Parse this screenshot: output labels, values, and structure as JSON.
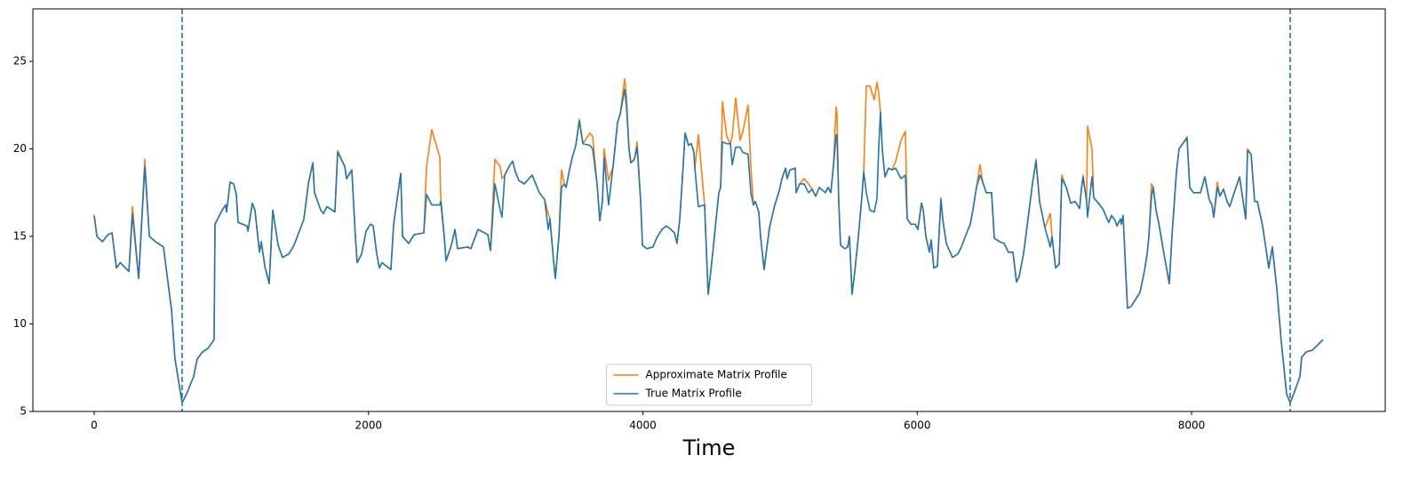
{
  "chart_data": {
    "type": "line",
    "xlabel": "Time",
    "x": [
      0,
      20,
      60,
      100,
      130,
      162,
      190,
      253,
      279,
      324,
      369,
      402,
      447,
      505,
      544,
      564,
      589,
      641,
      674,
      725,
      751,
      790,
      829,
      874,
      881,
      933,
      959,
      965,
      991,
      1017,
      1036,
      1049,
      1114,
      1121,
      1153,
      1172,
      1205,
      1218,
      1244,
      1276,
      1302,
      1341,
      1373,
      1419,
      1457,
      1496,
      1529,
      1561,
      1594,
      1606,
      1652,
      1671,
      1697,
      1755,
      1775,
      1827,
      1840,
      1878,
      1904,
      1917,
      1950,
      1982,
      2015,
      2034,
      2060,
      2079,
      2099,
      2163,
      2183,
      2235,
      2248,
      2293,
      2332,
      2403,
      2423,
      2461,
      2520,
      2526,
      2552,
      2565,
      2604,
      2630,
      2649,
      2721,
      2746,
      2798,
      2870,
      2889,
      2921,
      2960,
      2973,
      2993,
      3025,
      3051,
      3070,
      3096,
      3135,
      3193,
      3245,
      3284,
      3310,
      3323,
      3349,
      3362,
      3388,
      3407,
      3427,
      3440,
      3465,
      3485,
      3511,
      3537,
      3563,
      3614,
      3634,
      3666,
      3686,
      3705,
      3718,
      3750,
      3783,
      3815,
      3835,
      3867,
      3880,
      3899,
      3912,
      3938,
      3958,
      3984,
      3997,
      4029,
      4074,
      4100,
      4139,
      4171,
      4204,
      4230,
      4249,
      4269,
      4288,
      4308,
      4333,
      4353,
      4372,
      4379,
      4405,
      4450,
      4469,
      4476,
      4495,
      4515,
      4534,
      4554,
      4567,
      4580,
      4612,
      4638,
      4651,
      4677,
      4709,
      4729,
      4767,
      4787,
      4806,
      4819,
      4845,
      4858,
      4884,
      4903,
      4923,
      4962,
      4994,
      5014,
      5040,
      5052,
      5072,
      5111,
      5117,
      5143,
      5176,
      5208,
      5234,
      5260,
      5286,
      5331,
      5350,
      5370,
      5389,
      5409,
      5415,
      5428,
      5441,
      5473,
      5493,
      5506,
      5525,
      5545,
      5571,
      5597,
      5610,
      5629,
      5655,
      5687,
      5707,
      5719,
      5732,
      5745,
      5765,
      5791,
      5817,
      5843,
      5882,
      5914,
      5927,
      5953,
      5985,
      6005,
      6031,
      6044,
      6063,
      6089,
      6102,
      6121,
      6147,
      6173,
      6186,
      6212,
      6257,
      6296,
      6322,
      6361,
      6387,
      6406,
      6432,
      6458,
      6478,
      6503,
      6542,
      6562,
      6601,
      6633,
      6665,
      6698,
      6724,
      6743,
      6775,
      6808,
      6840,
      6866,
      6892,
      6931,
      6970,
      6983,
      7009,
      7035,
      7054,
      7087,
      7119,
      7151,
      7184,
      7197,
      7209,
      7235,
      7242,
      7274,
      7287,
      7332,
      7358,
      7384,
      7397,
      7417,
      7443,
      7456,
      7482,
      7488,
      7501,
      7520,
      7533,
      7559,
      7592,
      7624,
      7656,
      7676,
      7689,
      7708,
      7721,
      7741,
      7760,
      7799,
      7838,
      7857,
      7890,
      7909,
      7935,
      7967,
      7987,
      8013,
      8065,
      8097,
      8129,
      8149,
      8162,
      8188,
      8207,
      8233,
      8259,
      8278,
      8311,
      8350,
      8395,
      8408,
      8434,
      8460,
      8479,
      8518,
      8563,
      8589,
      8622,
      8654,
      8693,
      8719,
      8745,
      8790,
      8803,
      8835,
      8881,
      8920,
      8958
    ],
    "series": [
      {
        "name": "Approximate Matrix Profile",
        "color": "#ff7f0e",
        "values": [
          16.2,
          15.0,
          14.7,
          15.1,
          15.2,
          13.2,
          13.5,
          13.0,
          16.7,
          12.6,
          19.4,
          15.0,
          14.7,
          14.4,
          12.0,
          10.8,
          8.0,
          5.5,
          6.0,
          7.0,
          8.0,
          8.4,
          8.6,
          9.1,
          15.7,
          16.5,
          16.8,
          16.4,
          18.1,
          18.0,
          17.4,
          15.8,
          15.6,
          15.3,
          16.9,
          16.5,
          14.1,
          14.7,
          13.3,
          12.3,
          16.5,
          14.5,
          13.8,
          14.0,
          14.5,
          15.3,
          16.0,
          18.0,
          19.2,
          17.5,
          16.5,
          16.3,
          16.7,
          16.4,
          19.9,
          19.0,
          18.3,
          18.8,
          15.0,
          13.5,
          14.0,
          15.3,
          15.7,
          15.6,
          14.0,
          13.2,
          13.5,
          13.1,
          15.7,
          18.6,
          15.0,
          14.6,
          15.1,
          15.2,
          19.0,
          21.1,
          19.5,
          17.3,
          15.0,
          13.6,
          14.5,
          15.4,
          14.3,
          14.4,
          14.3,
          15.4,
          15.1,
          14.2,
          19.4,
          19.0,
          18.3,
          18.5,
          19.0,
          19.3,
          18.7,
          18.2,
          18.0,
          18.5,
          17.5,
          17.1,
          16.3,
          16.0,
          13.6,
          12.6,
          15.0,
          18.8,
          18.0,
          17.8,
          18.8,
          19.5,
          20.2,
          21.7,
          20.3,
          20.9,
          20.7,
          18.0,
          15.9,
          17.0,
          20.0,
          18.2,
          19.0,
          21.5,
          22.0,
          24.0,
          23.0,
          20.0,
          19.2,
          19.4,
          20.4,
          17.0,
          14.5,
          14.3,
          14.4,
          14.9,
          15.4,
          15.6,
          15.4,
          15.2,
          14.6,
          16.0,
          18.3,
          20.9,
          20.2,
          20.3,
          19.8,
          18.9,
          20.8,
          16.8,
          13.0,
          11.7,
          13.0,
          14.5,
          16.0,
          17.5,
          17.8,
          22.7,
          20.7,
          20.3,
          20.7,
          22.9,
          20.5,
          21.0,
          22.5,
          19.0,
          16.8,
          17.0,
          16.4,
          15.0,
          13.1,
          14.3,
          15.5,
          16.8,
          17.6,
          18.3,
          18.9,
          18.3,
          18.8,
          18.9,
          17.5,
          18.0,
          18.3,
          18.0,
          17.7,
          17.3,
          17.8,
          17.5,
          17.8,
          17.5,
          19.0,
          22.4,
          22.0,
          17.0,
          14.5,
          14.3,
          14.4,
          15.0,
          11.7,
          13.0,
          15.0,
          17.3,
          18.7,
          23.6,
          23.6,
          22.8,
          23.8,
          23.2,
          22.1,
          20.0,
          18.4,
          18.9,
          18.8,
          19.3,
          20.5,
          21.0,
          16.0,
          15.7,
          15.7,
          15.4,
          16.9,
          16.5,
          15.0,
          14.1,
          14.8,
          13.2,
          13.3,
          17.2,
          16.0,
          14.6,
          13.8,
          14.0,
          14.4,
          15.2,
          15.7,
          16.5,
          17.8,
          19.1,
          18.1,
          17.5,
          17.5,
          14.9,
          14.7,
          14.6,
          14.1,
          14.1,
          12.4,
          12.7,
          14.0,
          16.0,
          18.0,
          19.4,
          17.0,
          15.5,
          16.3,
          15.0,
          13.2,
          13.4,
          18.5,
          17.8,
          16.9,
          17.0,
          16.6,
          17.7,
          18.5,
          17.0,
          21.3,
          20.0,
          17.2,
          16.8,
          16.5,
          16.0,
          15.8,
          16.2,
          15.9,
          15.6,
          16.0,
          15.7,
          16.2,
          13.0,
          10.9,
          11.0,
          11.4,
          11.8,
          13.0,
          14.0,
          15.0,
          18.0,
          17.8,
          16.5,
          15.8,
          14.0,
          12.3,
          15.0,
          18.7,
          20.0,
          20.3,
          20.7,
          17.8,
          17.5,
          17.5,
          18.4,
          17.1,
          16.8,
          16.1,
          18.1,
          17.3,
          17.7,
          17.0,
          16.7,
          17.5,
          18.4,
          16.0,
          20.0,
          19.7,
          17.0,
          17.0,
          15.6,
          13.2,
          14.4,
          12.0,
          9.0,
          6.0,
          5.5,
          6.0,
          7.0,
          8.1,
          8.4,
          8.5,
          8.8,
          9.1
        ]
      },
      {
        "name": "True Matrix Profile",
        "color": "#1f77b4",
        "values": [
          16.2,
          15.0,
          14.7,
          15.1,
          15.2,
          13.2,
          13.5,
          13.0,
          16.3,
          12.6,
          19.0,
          15.0,
          14.7,
          14.4,
          12.0,
          10.8,
          8.0,
          5.5,
          6.0,
          7.0,
          8.0,
          8.4,
          8.6,
          9.1,
          15.7,
          16.5,
          16.8,
          16.4,
          18.1,
          18.0,
          17.4,
          15.8,
          15.6,
          15.3,
          16.9,
          16.5,
          14.1,
          14.7,
          13.3,
          12.3,
          16.5,
          14.5,
          13.8,
          14.0,
          14.5,
          15.3,
          16.0,
          18.0,
          19.2,
          17.5,
          16.5,
          16.3,
          16.7,
          16.4,
          19.8,
          19.0,
          18.3,
          18.8,
          15.0,
          13.5,
          14.0,
          15.3,
          15.7,
          15.6,
          14.0,
          13.2,
          13.5,
          13.1,
          15.7,
          18.6,
          15.0,
          14.6,
          15.1,
          15.2,
          17.4,
          16.8,
          16.8,
          17.0,
          15.0,
          13.6,
          14.5,
          15.4,
          14.3,
          14.4,
          14.3,
          15.4,
          15.1,
          14.2,
          18.0,
          16.5,
          16.1,
          18.5,
          19.0,
          19.3,
          18.7,
          18.2,
          18.0,
          18.5,
          17.5,
          17.1,
          15.4,
          16.0,
          13.6,
          12.6,
          15.0,
          17.8,
          18.0,
          17.8,
          18.8,
          19.5,
          20.2,
          21.6,
          20.3,
          20.2,
          20.0,
          18.0,
          15.9,
          17.0,
          19.5,
          16.8,
          19.0,
          21.5,
          22.0,
          23.4,
          22.5,
          20.0,
          19.2,
          19.4,
          20.1,
          17.0,
          14.5,
          14.3,
          14.4,
          14.9,
          15.4,
          15.6,
          15.4,
          15.2,
          14.6,
          16.0,
          18.3,
          20.9,
          20.2,
          20.3,
          19.8,
          18.9,
          16.7,
          16.8,
          13.0,
          11.7,
          13.0,
          14.5,
          16.0,
          17.5,
          17.8,
          20.4,
          20.3,
          20.3,
          19.1,
          20.1,
          20.1,
          19.8,
          19.7,
          17.5,
          16.8,
          17.0,
          16.4,
          15.0,
          13.1,
          14.3,
          15.5,
          16.8,
          17.6,
          18.3,
          18.9,
          18.3,
          18.8,
          18.9,
          17.5,
          18.0,
          18.0,
          17.5,
          17.7,
          17.3,
          17.8,
          17.5,
          17.8,
          17.5,
          19.0,
          20.8,
          20.8,
          17.0,
          14.5,
          14.3,
          14.4,
          15.0,
          11.7,
          13.0,
          15.0,
          17.3,
          18.7,
          17.5,
          16.5,
          16.4,
          17.2,
          20.0,
          22.1,
          20.0,
          18.4,
          18.9,
          18.8,
          18.9,
          18.3,
          18.5,
          16.0,
          15.7,
          15.7,
          15.4,
          16.9,
          16.5,
          15.0,
          14.1,
          14.8,
          13.2,
          13.3,
          17.1,
          16.0,
          14.6,
          13.8,
          14.0,
          14.4,
          15.2,
          15.7,
          16.5,
          17.8,
          18.5,
          18.1,
          17.5,
          17.5,
          14.9,
          14.7,
          14.6,
          14.1,
          14.1,
          12.4,
          12.7,
          14.0,
          16.0,
          18.0,
          19.3,
          17.0,
          15.5,
          14.4,
          15.0,
          13.2,
          13.4,
          18.3,
          17.8,
          16.9,
          17.0,
          16.6,
          17.7,
          18.4,
          17.0,
          16.1,
          18.4,
          17.2,
          16.8,
          16.5,
          16.0,
          15.8,
          16.2,
          15.9,
          15.6,
          16.0,
          15.7,
          16.2,
          13.0,
          10.9,
          11.0,
          11.4,
          11.8,
          13.0,
          14.0,
          15.0,
          17.3,
          17.8,
          16.5,
          15.8,
          14.0,
          12.3,
          15.0,
          18.7,
          20.0,
          20.3,
          20.6,
          17.8,
          17.5,
          17.5,
          18.4,
          17.1,
          16.8,
          16.1,
          17.8,
          17.3,
          17.7,
          17.0,
          16.7,
          17.5,
          18.4,
          16.0,
          19.9,
          19.7,
          17.0,
          17.0,
          15.6,
          13.2,
          14.4,
          12.0,
          9.0,
          6.0,
          5.5,
          6.0,
          7.0,
          8.1,
          8.4,
          8.5,
          8.8,
          9.1
        ]
      }
    ],
    "xlim": [
      -447,
      9412
    ],
    "ylim": [
      5,
      28
    ],
    "xticks": [
      0,
      2000,
      4000,
      6000,
      8000
    ],
    "yticks": [
      5,
      10,
      15,
      20,
      25
    ],
    "vlines": [
      641,
      8719
    ],
    "vline_color": "#1f77b4",
    "legend": "lower center"
  }
}
